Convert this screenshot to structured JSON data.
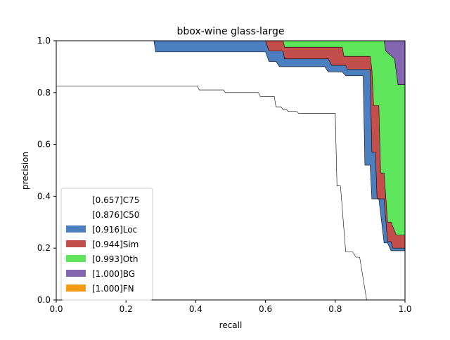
{
  "chart_data": {
    "type": "area",
    "title": "bbox-wine glass-large",
    "xlabel": "recall",
    "ylabel": "precision",
    "xlim": [
      0,
      1
    ],
    "ylim": [
      0,
      1
    ],
    "xticks": [
      "0.0",
      "0.2",
      "0.4",
      "0.6",
      "0.8",
      "1.0"
    ],
    "yticks": [
      "0.0",
      "0.2",
      "0.4",
      "0.6",
      "0.8",
      "1.0"
    ],
    "grid": false,
    "legend_position": "lower-left",
    "series": [
      {
        "name": "[0.657]C75",
        "color": "#ffffff",
        "points": [
          [
            0,
            0.825
          ],
          [
            0.405,
            0.825
          ],
          [
            0.41,
            0.81
          ],
          [
            0.48,
            0.81
          ],
          [
            0.485,
            0.8
          ],
          [
            0.58,
            0.8
          ],
          [
            0.585,
            0.785
          ],
          [
            0.625,
            0.785
          ],
          [
            0.63,
            0.745
          ],
          [
            0.645,
            0.745
          ],
          [
            0.65,
            0.735
          ],
          [
            0.66,
            0.735
          ],
          [
            0.665,
            0.727
          ],
          [
            0.69,
            0.727
          ],
          [
            0.695,
            0.72
          ],
          [
            0.8,
            0.72
          ],
          [
            0.805,
            0.44
          ],
          [
            0.815,
            0.44
          ],
          [
            0.83,
            0.185
          ],
          [
            0.85,
            0.185
          ],
          [
            0.86,
            0.165
          ],
          [
            0.87,
            0.165
          ],
          [
            0.89,
            0
          ]
        ]
      },
      {
        "name": "[0.876]C50",
        "color": "#ffffff",
        "points": [
          [
            0,
            1
          ],
          [
            0.28,
            1
          ],
          [
            0.285,
            0.957
          ],
          [
            0.6,
            0.957
          ],
          [
            0.61,
            0.92
          ],
          [
            0.63,
            0.92
          ],
          [
            0.64,
            0.9
          ],
          [
            0.77,
            0.9
          ],
          [
            0.78,
            0.88
          ],
          [
            0.82,
            0.88
          ],
          [
            0.83,
            0.865
          ],
          [
            0.88,
            0.865
          ],
          [
            0.885,
            0.52
          ],
          [
            0.9,
            0.52
          ],
          [
            0.905,
            0.39
          ],
          [
            0.925,
            0.39
          ],
          [
            0.94,
            0.22
          ],
          [
            0.95,
            0.22
          ],
          [
            0.96,
            0.19
          ],
          [
            1,
            0.19
          ]
        ]
      },
      {
        "name": "[0.916]Loc",
        "color": "#4c7fbf",
        "points": [
          [
            0,
            1
          ],
          [
            0.6,
            1
          ],
          [
            0.61,
            0.96
          ],
          [
            0.65,
            0.96
          ],
          [
            0.655,
            0.93
          ],
          [
            0.78,
            0.93
          ],
          [
            0.79,
            0.905
          ],
          [
            0.83,
            0.905
          ],
          [
            0.835,
            0.89
          ],
          [
            0.9,
            0.89
          ],
          [
            0.905,
            0.57
          ],
          [
            0.915,
            0.57
          ],
          [
            0.92,
            0.39
          ],
          [
            0.94,
            0.39
          ],
          [
            0.95,
            0.225
          ],
          [
            0.96,
            0.225
          ],
          [
            0.965,
            0.2
          ],
          [
            1,
            0.2
          ]
        ]
      },
      {
        "name": "[0.944]Sim",
        "color": "#c44e4b",
        "points": [
          [
            0,
            1
          ],
          [
            0.65,
            1
          ],
          [
            0.655,
            0.975
          ],
          [
            0.82,
            0.975
          ],
          [
            0.825,
            0.94
          ],
          [
            0.9,
            0.94
          ],
          [
            0.905,
            0.89
          ],
          [
            0.91,
            0.75
          ],
          [
            0.925,
            0.75
          ],
          [
            0.93,
            0.49
          ],
          [
            0.94,
            0.49
          ],
          [
            0.95,
            0.3
          ],
          [
            0.96,
            0.3
          ],
          [
            0.975,
            0.25
          ],
          [
            1,
            0.25
          ]
        ]
      },
      {
        "name": "[0.993]Oth",
        "color": "#5ee55b",
        "points": [
          [
            0,
            1
          ],
          [
            0.94,
            1
          ],
          [
            0.945,
            0.96
          ],
          [
            0.97,
            0.93
          ],
          [
            0.98,
            0.83
          ],
          [
            1,
            0.83
          ]
        ]
      },
      {
        "name": "[1.000]BG",
        "color": "#8465b0",
        "points": [
          [
            0,
            1
          ],
          [
            1,
            1
          ]
        ]
      },
      {
        "name": "[1.000]FN",
        "color": "#f79a14",
        "points": [
          [
            0,
            1
          ],
          [
            1,
            1
          ]
        ]
      }
    ]
  }
}
